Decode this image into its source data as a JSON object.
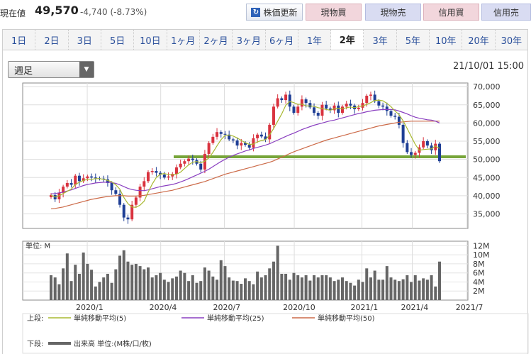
{
  "header": {
    "price_label": "現在値",
    "price": "49,570",
    "change": "-4,740 (-8.73%)",
    "update_button": "株価更新",
    "buttons": [
      {
        "label": "現物買",
        "kind": "buy"
      },
      {
        "label": "現物売",
        "kind": "sell"
      },
      {
        "label": "信用買",
        "kind": "buy"
      },
      {
        "label": "信用売",
        "kind": "sell"
      }
    ]
  },
  "tabs": [
    "1日",
    "2日",
    "3日",
    "5日",
    "10日",
    "1ヶ月",
    "2ヶ月",
    "3ヶ月",
    "6ヶ月",
    "1年",
    "2年",
    "3年",
    "5年",
    "10年",
    "20年",
    "30年"
  ],
  "active_tab": "2年",
  "period_select": {
    "value": "週足"
  },
  "timestamp": "21/10/01 15:00",
  "colors": {
    "up": "#d9333f",
    "down": "#1f3f95",
    "ma5": "#a8b830",
    "ma25": "#8a3fc0",
    "ma50": "#cc6a48",
    "support": "#77a53a",
    "volume": "#666666"
  },
  "chart_data": {
    "type": "candlestick",
    "price_axis": {
      "ticks": [
        "70,000",
        "65,000",
        "60,000",
        "55,000",
        "50,000",
        "45,000",
        "40,000",
        "35,000"
      ],
      "min": 31000,
      "max": 71000
    },
    "volume_axis": {
      "unit_label": "単位: M",
      "ticks": [
        "12M",
        "10M",
        "8M",
        "6M",
        "4M",
        "2M"
      ],
      "max": 13
    },
    "x_labels": [
      "2020/1",
      "2020/4",
      "2020/7",
      "2020/10",
      "2021/1",
      "2021/4",
      "2021/7"
    ],
    "support_level": 50700,
    "closes": [
      40200,
      39000,
      40800,
      42500,
      43500,
      43000,
      45500,
      44000,
      44800,
      45300,
      45000,
      44800,
      44700,
      44500,
      43500,
      41500,
      40500,
      37500,
      34000,
      33500,
      37500,
      39500,
      42500,
      44000,
      46500,
      46800,
      46300,
      45800,
      45000,
      45300,
      46000,
      47800,
      48800,
      49500,
      50200,
      49800,
      48800,
      47200,
      51500,
      54500,
      56200,
      57500,
      57000,
      56800,
      55500,
      55200,
      53800,
      54500,
      54000,
      53200,
      55800,
      56800,
      56300,
      55500,
      59500,
      64500,
      66800,
      66300,
      67800,
      64500,
      62800,
      64500,
      66500,
      65500,
      64300,
      62800,
      62000,
      65000,
      64000,
      63500,
      64800,
      62800,
      64500,
      65300,
      64800,
      63800,
      64200,
      65500,
      67500,
      67800,
      66000,
      64800,
      64500,
      63300,
      62000,
      61700,
      59500,
      54500,
      52000,
      51200,
      51800,
      53300,
      55000,
      53800,
      52500,
      54300,
      49500
    ],
    "ma5": [
      40200,
      39600,
      40000,
      40600,
      41200,
      41800,
      43100,
      43700,
      44200,
      44500,
      44500,
      44700,
      44700,
      44500,
      44200,
      43800,
      43000,
      41800,
      39500,
      37800,
      36900,
      36800,
      37400,
      38500,
      41000,
      43200,
      45000,
      45900,
      46100,
      45800,
      45700,
      45900,
      46500,
      47500,
      48500,
      49200,
      49400,
      49100,
      49500,
      50400,
      51900,
      53700,
      55400,
      56600,
      56700,
      56400,
      55900,
      55200,
      54600,
      54100,
      54200,
      54800,
      55200,
      55400,
      56700,
      58500,
      60500,
      62500,
      64900,
      65900,
      65600,
      65100,
      65200,
      64700,
      64700,
      64600,
      64200,
      64000,
      63700,
      63500,
      63900,
      64000,
      63900,
      64200,
      64400,
      64200,
      64500,
      64700,
      65100,
      65600,
      66200,
      66300,
      66100,
      65400,
      64500,
      63300,
      62300,
      60600,
      58500,
      56300,
      54100,
      52500,
      52700,
      52800,
      52900,
      53700,
      53000
    ],
    "ma25": [
      40500,
      40600,
      40800,
      41000,
      41300,
      41600,
      42000,
      42400,
      42800,
      43100,
      43300,
      43500,
      43600,
      43700,
      43700,
      43600,
      43400,
      43000,
      42500,
      42000,
      41700,
      41500,
      41400,
      41400,
      41600,
      41900,
      42200,
      42500,
      42700,
      42900,
      43100,
      43400,
      43800,
      44200,
      44700,
      45200,
      45700,
      46200,
      46700,
      47300,
      48000,
      48700,
      49400,
      50000,
      50600,
      51100,
      51500,
      51900,
      52300,
      52600,
      53000,
      53300,
      53600,
      53900,
      54300,
      54800,
      55300,
      55800,
      56300,
      56800,
      57200,
      57700,
      58200,
      58600,
      59000,
      59400,
      59700,
      60000,
      60300,
      60600,
      60800,
      61100,
      61400,
      61700,
      62000,
      62300,
      62600,
      62800,
      63100,
      63300,
      63500,
      63600,
      63700,
      63700,
      63700,
      63600,
      63300,
      62900,
      62500,
      62000,
      61600,
      61300,
      61100,
      60900,
      60800,
      60500,
      60000
    ],
    "ma50": [
      36400,
      36500,
      36700,
      36900,
      37200,
      37500,
      37800,
      38100,
      38400,
      38700,
      39000,
      39200,
      39400,
      39600,
      39800,
      39900,
      40000,
      40000,
      40000,
      39900,
      39900,
      39900,
      40000,
      40100,
      40300,
      40500,
      40700,
      40900,
      41100,
      41300,
      41500,
      41800,
      42100,
      42400,
      42700,
      43000,
      43300,
      43600,
      43900,
      44300,
      44700,
      45100,
      45500,
      45900,
      46200,
      46500,
      46800,
      47100,
      47400,
      47700,
      48000,
      48300,
      48600,
      48900,
      49200,
      49600,
      50100,
      50600,
      51100,
      51600,
      52100,
      52500,
      52900,
      53300,
      53700,
      54100,
      54500,
      54900,
      55300,
      55600,
      55900,
      56200,
      56500,
      56800,
      57100,
      57400,
      57700,
      58000,
      58300,
      58600,
      58900,
      59200,
      59400,
      59600,
      59800,
      60000,
      60200,
      60300,
      60400,
      60500,
      60500,
      60500,
      60500,
      60500,
      60500,
      60500,
      60500
    ],
    "volume": [
      5.5,
      5.0,
      3.5,
      7.0,
      10.3,
      4.2,
      7.8,
      5.8,
      10.5,
      8.0,
      6.7,
      3.0,
      4.0,
      5.0,
      5.8,
      3.8,
      6.8,
      9.8,
      11.0,
      8.5,
      7.8,
      8.0,
      7.5,
      6.8,
      7.2,
      5.0,
      5.5,
      6.0,
      4.5,
      4.0,
      4.8,
      5.2,
      6.5,
      6.0,
      4.2,
      5.5,
      3.8,
      4.2,
      7.2,
      6.5,
      5.2,
      4.5,
      8.8,
      7.5,
      5.0,
      4.3,
      4.2,
      3.6,
      4.8,
      4.2,
      3.5,
      6.3,
      5.0,
      5.5,
      7.0,
      8.5,
      12.0,
      5.8,
      5.8,
      4.5,
      6.0,
      5.5,
      5.0,
      5.5,
      4.3,
      5.5,
      5.0,
      5.5,
      5.5,
      5.0,
      4.2,
      4.5,
      5.0,
      4.2,
      3.8,
      3.2,
      4.5,
      4.0,
      7.0,
      5.0,
      6.5,
      4.5,
      4.5,
      7.5,
      5.0,
      4.5,
      4.2,
      4.6,
      5.5,
      4.0,
      5.5,
      4.3,
      4.8,
      4.5,
      5.5,
      3.0,
      8.5
    ],
    "legend": [
      {
        "position": "上段:",
        "name": "単純移動平均(5)",
        "color_key": "ma5"
      },
      {
        "position": "",
        "name": "単純移動平均(25)",
        "color_key": "ma25"
      },
      {
        "position": "",
        "name": "単純移動平均(50)",
        "color_key": "ma50"
      },
      {
        "position": "下段:",
        "name": "出来高 単位:(M株/口/枚)",
        "color_key": "volume"
      }
    ]
  }
}
